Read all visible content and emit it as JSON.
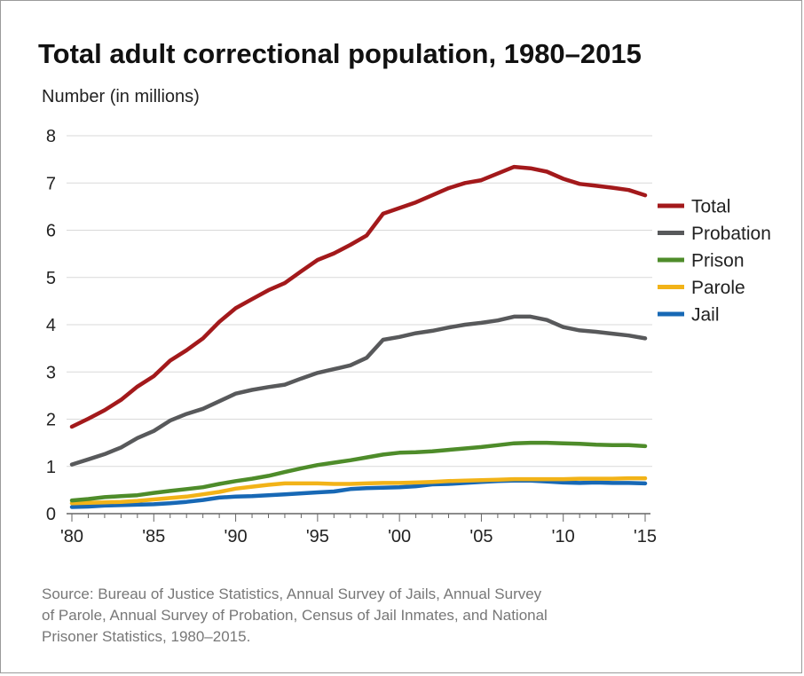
{
  "chart_data": {
    "type": "line",
    "title": "Total adult correctional population, 1980–2015",
    "ylabel": "Number (in millions)",
    "ylim": [
      0,
      8
    ],
    "yticks": [
      0,
      1,
      2,
      3,
      4,
      5,
      6,
      7,
      8
    ],
    "xlim": [
      1980,
      2015
    ],
    "xticks": [
      1980,
      1985,
      1990,
      1995,
      2000,
      2005,
      2010,
      2015
    ],
    "xtick_labels": [
      "'80",
      "'85",
      "'90",
      "'95",
      "'00",
      "'05",
      "'10",
      "'15"
    ],
    "grid": true,
    "legend_position": "right",
    "x": [
      1980,
      1981,
      1982,
      1983,
      1984,
      1985,
      1986,
      1987,
      1988,
      1989,
      1990,
      1991,
      1992,
      1993,
      1994,
      1995,
      1996,
      1997,
      1998,
      1999,
      2000,
      2001,
      2002,
      2003,
      2004,
      2005,
      2006,
      2007,
      2008,
      2009,
      2010,
      2011,
      2012,
      2013,
      2014,
      2015
    ],
    "series": [
      {
        "name": "Total",
        "color": "#a3191b",
        "values": [
          1.84,
          2.01,
          2.19,
          2.41,
          2.69,
          2.91,
          3.24,
          3.46,
          3.71,
          4.06,
          4.35,
          4.54,
          4.73,
          4.88,
          5.13,
          5.37,
          5.51,
          5.69,
          5.89,
          6.35,
          6.47,
          6.59,
          6.74,
          6.89,
          7.0,
          7.06,
          7.2,
          7.34,
          7.31,
          7.24,
          7.09,
          6.98,
          6.94,
          6.9,
          6.85,
          6.74
        ]
      },
      {
        "name": "Probation",
        "color": "#58595b",
        "values": [
          1.04,
          1.15,
          1.26,
          1.4,
          1.6,
          1.75,
          1.97,
          2.11,
          2.22,
          2.38,
          2.54,
          2.62,
          2.68,
          2.73,
          2.86,
          2.98,
          3.06,
          3.14,
          3.3,
          3.68,
          3.74,
          3.82,
          3.87,
          3.94,
          4.0,
          4.04,
          4.09,
          4.17,
          4.17,
          4.1,
          3.95,
          3.88,
          3.85,
          3.81,
          3.77,
          3.71
        ]
      },
      {
        "name": "Prison",
        "color": "#4e8c2a",
        "values": [
          0.28,
          0.31,
          0.35,
          0.37,
          0.39,
          0.44,
          0.48,
          0.52,
          0.56,
          0.63,
          0.69,
          0.74,
          0.8,
          0.88,
          0.96,
          1.03,
          1.08,
          1.13,
          1.19,
          1.25,
          1.29,
          1.3,
          1.32,
          1.35,
          1.38,
          1.41,
          1.45,
          1.49,
          1.5,
          1.5,
          1.49,
          1.48,
          1.46,
          1.45,
          1.45,
          1.43
        ]
      },
      {
        "name": "Parole",
        "color": "#f2b318",
        "values": [
          0.22,
          0.23,
          0.24,
          0.25,
          0.27,
          0.3,
          0.33,
          0.36,
          0.41,
          0.46,
          0.53,
          0.57,
          0.61,
          0.64,
          0.64,
          0.64,
          0.63,
          0.63,
          0.64,
          0.65,
          0.65,
          0.66,
          0.67,
          0.69,
          0.7,
          0.71,
          0.72,
          0.73,
          0.73,
          0.73,
          0.73,
          0.74,
          0.74,
          0.74,
          0.75,
          0.75
        ]
      },
      {
        "name": "Jail",
        "color": "#1768b5",
        "values": [
          0.14,
          0.15,
          0.17,
          0.18,
          0.19,
          0.2,
          0.22,
          0.25,
          0.29,
          0.34,
          0.36,
          0.37,
          0.39,
          0.41,
          0.43,
          0.45,
          0.47,
          0.52,
          0.54,
          0.55,
          0.56,
          0.58,
          0.62,
          0.63,
          0.65,
          0.67,
          0.69,
          0.7,
          0.7,
          0.68,
          0.66,
          0.65,
          0.66,
          0.65,
          0.65,
          0.64
        ]
      }
    ]
  },
  "source_lines": [
    "Source: Bureau of Justice Statistics, Annual Survey of Jails, Annual Survey",
    "of Parole, Annual Survey of Probation, Census of Jail Inmates, and National",
    "Prisoner Statistics, 1980–2015."
  ]
}
